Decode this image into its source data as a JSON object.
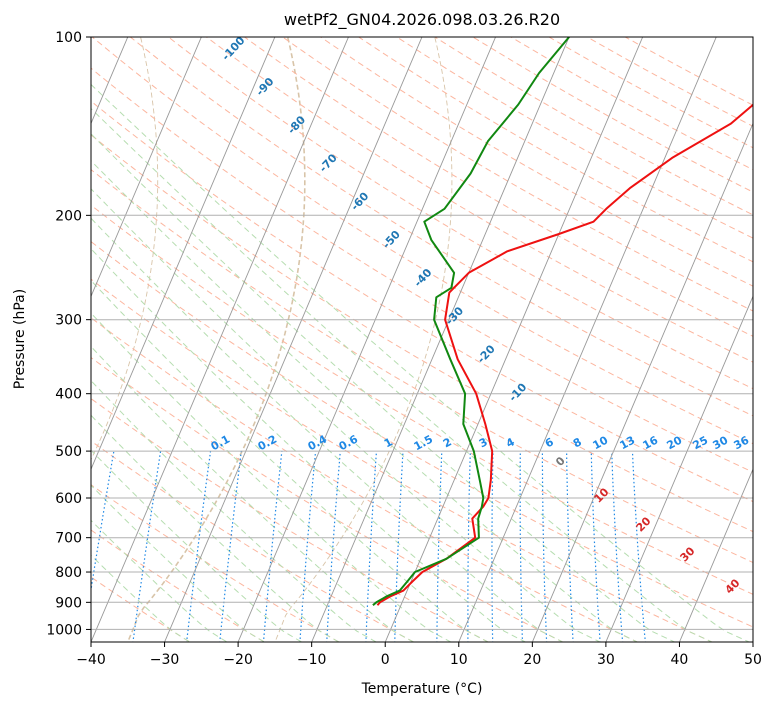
{
  "chart_data": {
    "type": "line",
    "title": "wetPf2_GN04.2026.098.03.26.R20",
    "xlabel": "Temperature (°C)",
    "ylabel": "Pressure (hPa)",
    "xlim": [
      -40,
      50
    ],
    "ylim": [
      1050,
      100
    ],
    "x_ticks": [
      "−40",
      "−30",
      "−20",
      "−10",
      "0",
      "10",
      "20",
      "30",
      "40",
      "50"
    ],
    "y_ticks": [
      "100",
      "200",
      "300",
      "400",
      "500",
      "600",
      "700",
      "800",
      "900",
      "1000"
    ],
    "skew": 35,
    "series": [
      {
        "name": "temperature",
        "color": "#ee1111",
        "points": [
          {
            "p": 910,
            "t": -3.2
          },
          {
            "p": 900,
            "t": -3.0
          },
          {
            "p": 880,
            "t": -2.0
          },
          {
            "p": 860,
            "t": -0.5
          },
          {
            "p": 830,
            "t": 0.2
          },
          {
            "p": 800,
            "t": 1.0
          },
          {
            "p": 760,
            "t": 3.5
          },
          {
            "p": 700,
            "t": 6.2
          },
          {
            "p": 650,
            "t": 4.7
          },
          {
            "p": 620,
            "t": 5.5
          },
          {
            "p": 600,
            "t": 5.7
          },
          {
            "p": 560,
            "t": 5.0
          },
          {
            "p": 500,
            "t": 3.5
          },
          {
            "p": 450,
            "t": 1.0
          },
          {
            "p": 400,
            "t": -2.0
          },
          {
            "p": 350,
            "t": -6.5
          },
          {
            "p": 300,
            "t": -10.5
          },
          {
            "p": 270,
            "t": -11.5
          },
          {
            "p": 250,
            "t": -10.0
          },
          {
            "p": 230,
            "t": -6.0
          },
          {
            "p": 215,
            "t": 0.0
          },
          {
            "p": 205,
            "t": 4.0
          },
          {
            "p": 195,
            "t": 5.0
          },
          {
            "p": 180,
            "t": 7.0
          },
          {
            "p": 160,
            "t": 11.0
          },
          {
            "p": 140,
            "t": 17.0
          },
          {
            "p": 125,
            "t": 20.0
          },
          {
            "p": 110,
            "t": 21.5
          },
          {
            "p": 100,
            "t": 24.0
          }
        ]
      },
      {
        "name": "dewpoint",
        "color": "#118811",
        "points": [
          {
            "p": 910,
            "t": -3.8
          },
          {
            "p": 900,
            "t": -3.5
          },
          {
            "p": 880,
            "t": -2.5
          },
          {
            "p": 860,
            "t": -1.0
          },
          {
            "p": 830,
            "t": -0.5
          },
          {
            "p": 800,
            "t": 0.0
          },
          {
            "p": 760,
            "t": 3.5
          },
          {
            "p": 700,
            "t": 6.7
          },
          {
            "p": 650,
            "t": 5.5
          },
          {
            "p": 620,
            "t": 5.3
          },
          {
            "p": 600,
            "t": 5.0
          },
          {
            "p": 560,
            "t": 3.5
          },
          {
            "p": 500,
            "t": 1.0
          },
          {
            "p": 450,
            "t": -2.0
          },
          {
            "p": 400,
            "t": -3.5
          },
          {
            "p": 350,
            "t": -7.5
          },
          {
            "p": 300,
            "t": -12.0
          },
          {
            "p": 275,
            "t": -13.0
          },
          {
            "p": 265,
            "t": -11.5
          },
          {
            "p": 250,
            "t": -12.0
          },
          {
            "p": 220,
            "t": -17.0
          },
          {
            "p": 205,
            "t": -19.0
          },
          {
            "p": 195,
            "t": -17.0
          },
          {
            "p": 170,
            "t": -15.5
          },
          {
            "p": 150,
            "t": -15.0
          },
          {
            "p": 130,
            "t": -13.0
          },
          {
            "p": 115,
            "t": -12.0
          },
          {
            "p": 100,
            "t": -10.0
          }
        ]
      }
    ],
    "isotherm_labels": [
      "-100",
      "-90",
      "-80",
      "-70",
      "-60",
      "-50",
      "-40",
      "-30",
      "-20",
      "-10"
    ],
    "mixing_ratio_labels": [
      "0.1",
      "0.2",
      "0.4",
      "0.6",
      "1",
      "1.5",
      "2",
      "3",
      "4",
      "6",
      "8",
      "10",
      "13",
      "16",
      "20",
      "25",
      "30",
      "36"
    ],
    "moist_adiabat_labels": [
      "0",
      "10",
      "20",
      "30",
      "40"
    ],
    "colors": {
      "grid": "#b0b0b0",
      "isotherm": "#999999",
      "dry_adiabat": "#fcb69f",
      "moist_adiabat": "#b6ddb0",
      "mixing_ratio": "#1e88e5",
      "isotherm_label": "#1f77b4",
      "moist_label": "#d62728",
      "zero_label": "#777777",
      "tan_curve": "#d8c4a8"
    }
  }
}
